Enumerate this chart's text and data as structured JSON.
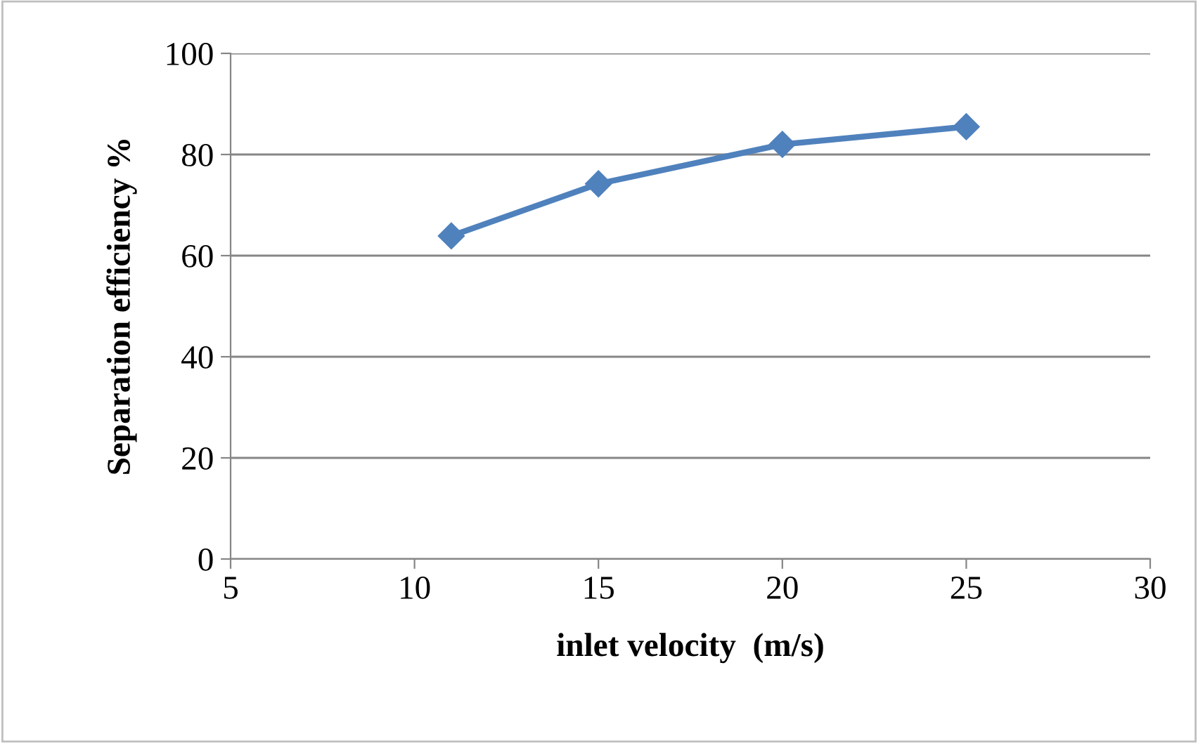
{
  "chart_data": {
    "type": "line",
    "xlabel": "inlet velocity  (m/s)",
    "ylabel": "Separation efficiency %",
    "series": [
      {
        "color": "#4f81bd",
        "x": [
          11,
          15,
          20,
          25
        ],
        "values": [
          63.9,
          74.2,
          82.0,
          85.5
        ]
      }
    ],
    "xlim": [
      5,
      30
    ],
    "xticks": [
      5,
      10,
      15,
      20,
      25,
      30
    ],
    "ylim": [
      0,
      100
    ],
    "yticks": [
      0,
      20,
      40,
      60,
      80,
      100
    ],
    "grid": "y",
    "marker": "diamond",
    "line_style": "solid"
  }
}
